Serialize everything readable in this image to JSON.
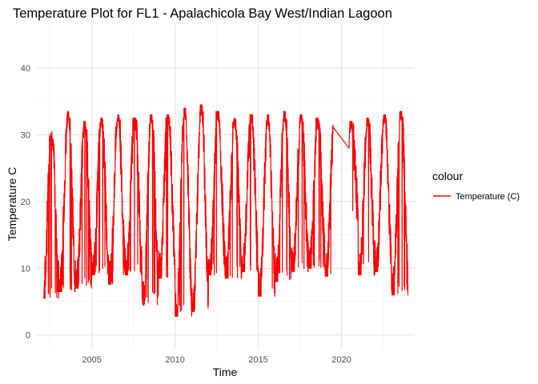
{
  "chart_data": {
    "type": "line",
    "title": "Temperature Plot for FL1 - Apalachicola Bay West/Indian Lagoon",
    "xlabel": "Time",
    "ylabel": "Temperature C",
    "xlim": [
      2001.6,
      2024.4
    ],
    "ylim": [
      -2.2,
      46.5
    ],
    "x_ticks": [
      2005,
      2010,
      2015,
      2020
    ],
    "y_ticks": [
      0,
      10,
      20,
      30,
      40
    ],
    "grid": true,
    "legend": {
      "title": "colour",
      "position": "right"
    },
    "series": [
      {
        "name": "Temperature (C)",
        "color": "#ff0000",
        "gap": [
          2019.5,
          2020.5
        ],
        "annual_min": [
          5.5,
          6.5,
          7.0,
          9.0,
          7.6,
          9.0,
          4.5,
          8.5,
          2.8,
          3.5,
          9.0,
          8.5,
          9.5,
          5.8,
          8.0,
          9.5,
          10.0,
          8.8,
          17.0,
          9.0,
          9.5,
          6.0,
          15.0
        ],
        "annual_max": [
          30.5,
          33.5,
          32.0,
          32.5,
          33.0,
          32.5,
          33.0,
          33.0,
          34.0,
          34.5,
          33.5,
          32.5,
          33.0,
          33.0,
          33.5,
          33.0,
          32.5,
          32.5,
          32.0,
          32.5,
          33.0,
          33.5,
          33.5
        ],
        "x": [
          2002.1,
          2002.6,
          2003.1,
          2003.6,
          2004.1,
          2004.6,
          2005.1,
          2005.6,
          2006.1,
          2006.6,
          2007.1,
          2007.6,
          2008.1,
          2008.6,
          2009.1,
          2009.6,
          2010.1,
          2010.6,
          2011.1,
          2011.6,
          2012.1,
          2012.6,
          2013.1,
          2013.6,
          2014.1,
          2014.6,
          2015.1,
          2015.6,
          2016.1,
          2016.6,
          2017.1,
          2017.6,
          2018.1,
          2018.6,
          2019.1,
          2019.5,
          2020.5,
          2020.9,
          2021.1,
          2021.6,
          2022.1,
          2022.6,
          2023.1,
          2023.6,
          2024.0
        ],
        "y": [
          5.5,
          30.5,
          6.5,
          33.5,
          7.0,
          32.0,
          9.0,
          32.5,
          7.6,
          33.0,
          9.0,
          32.5,
          4.5,
          33.0,
          8.5,
          33.0,
          2.8,
          34.0,
          3.5,
          34.5,
          9.0,
          33.5,
          8.5,
          32.5,
          9.5,
          33.0,
          5.8,
          33.0,
          8.0,
          33.5,
          9.5,
          33.0,
          10.0,
          32.5,
          8.8,
          30.5,
          28.0,
          32.5,
          9.0,
          33.0,
          9.5,
          33.5,
          6.0,
          33.5,
          25.0
        ]
      }
    ]
  }
}
